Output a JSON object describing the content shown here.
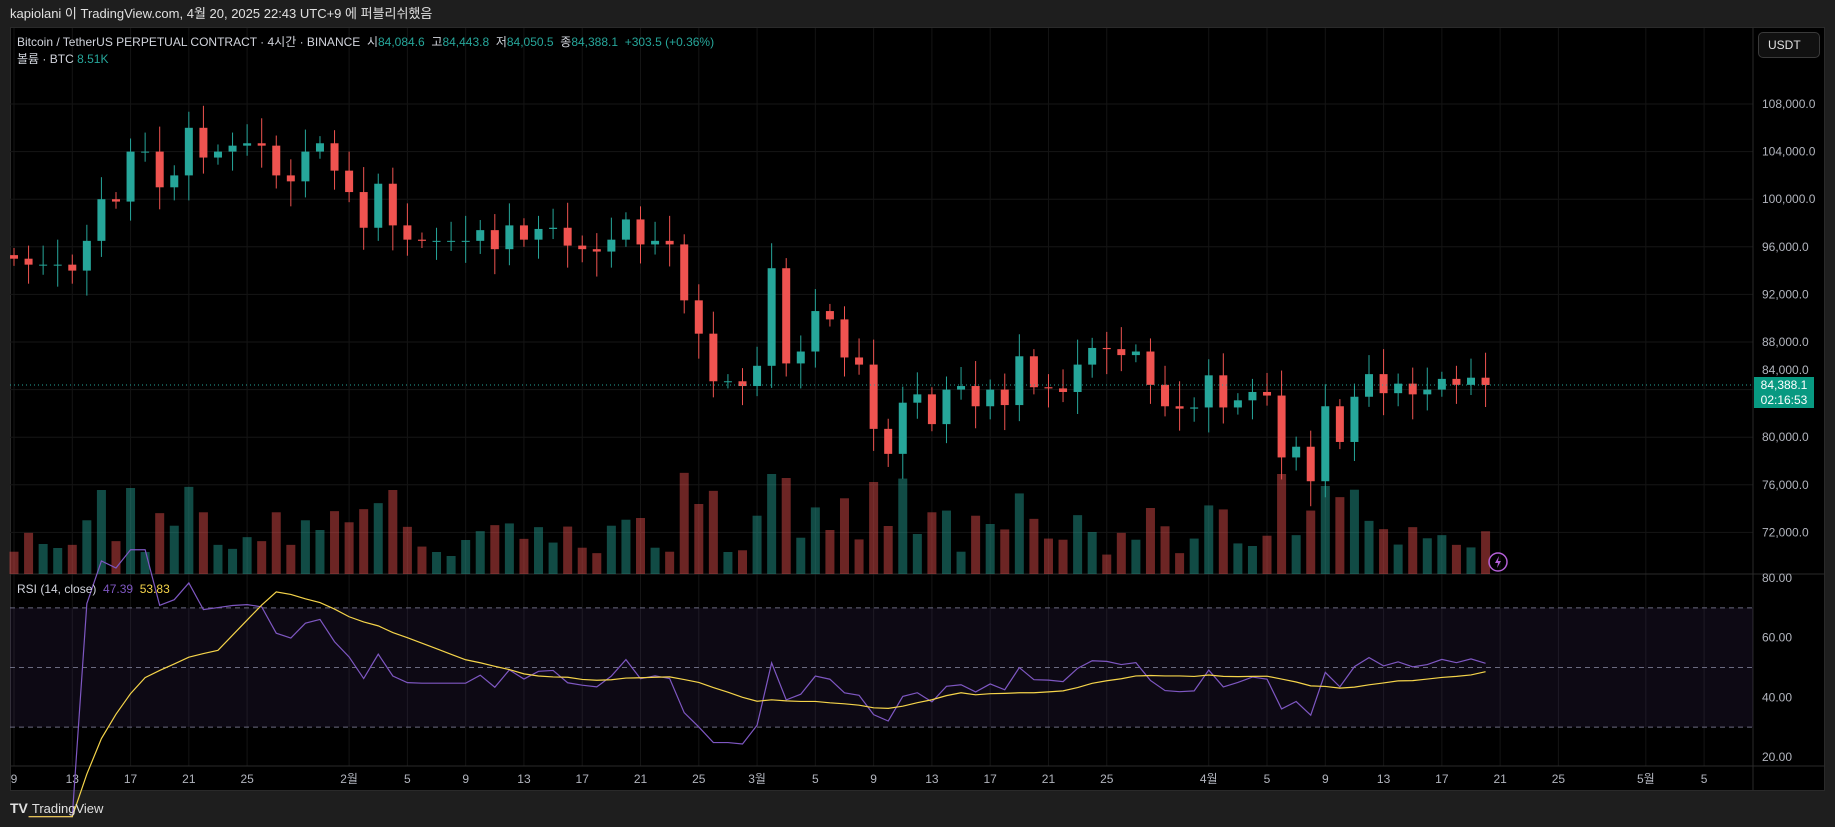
{
  "header": {
    "published": "kapiolani 이 TradingView.com, 4월 20, 2025 22:43 UTC+9 에 퍼블리쉬했음"
  },
  "legend": {
    "symbol": "Bitcoin / TetherUS PERPETUAL CONTRACT · 4시간 · BINANCE",
    "o_label": "시",
    "o": "84,084.6",
    "h_label": "고",
    "h": "84,443.8",
    "l_label": "저",
    "l": "84,050.5",
    "c_label": "종",
    "c": "84,388.1",
    "change": "+303.5 (+0.36%)",
    "volume_label": "볼륨 · BTC",
    "volume": "8.51K"
  },
  "rsi_legend": {
    "label": "RSI (14, close)",
    "rsi": "47.39",
    "ma": "53.83"
  },
  "price_axis": {
    "currency": "USDT",
    "current_price": "84,388.1",
    "countdown": "02:16:53"
  },
  "footer": {
    "brand": "TradingView"
  },
  "colors": {
    "up": "#26a69a",
    "down": "#ef5350",
    "rsi": "#7e57c2",
    "rsi_ma": "#f5d44a",
    "price_label": "#089981"
  },
  "icons": {
    "alert": "lightning-icon",
    "logo": "tradingview-logo"
  },
  "chart_data": {
    "type": "candlestick",
    "price_ticks": [
      108000,
      104000,
      100000,
      96000,
      92000,
      88000,
      84000,
      80000,
      76000,
      72000
    ],
    "price_tick_labels": [
      "108,000.0",
      "104,000.0",
      "100,000.0",
      "96,000.0",
      "92,000.0",
      "88,000.0",
      "84,000.0",
      "80,000.0",
      "76,000.0",
      "72,000.0"
    ],
    "rsi_ticks": [
      "80.00",
      "60.00",
      "40.00",
      "20.00"
    ],
    "rsi_levels": [
      70,
      50,
      30
    ],
    "x_tick_labels": [
      "9",
      "13",
      "17",
      "21",
      "25",
      "2월",
      "5",
      "9",
      "13",
      "17",
      "21",
      "25",
      "3월",
      "5",
      "9",
      "13",
      "17",
      "21",
      "25",
      "4월",
      "5",
      "9",
      "13",
      "17",
      "21",
      "25",
      "5월",
      "5"
    ],
    "closes": [
      95000,
      94500,
      94500,
      94500,
      94000,
      96500,
      100000,
      99800,
      104000,
      104000,
      101000,
      102000,
      106000,
      103500,
      104000,
      104500,
      104700,
      104500,
      102000,
      101500,
      104000,
      104700,
      102400,
      100600,
      97600,
      101300,
      97800,
      96600,
      96500,
      96500,
      96500,
      96500,
      97400,
      95800,
      97800,
      96600,
      97500,
      97600,
      96100,
      95800,
      95600,
      96600,
      98300,
      96200,
      96500,
      96200,
      91500,
      88700,
      84700,
      84700,
      84300,
      86000,
      94200,
      86200,
      87200,
      90600,
      89900,
      86700,
      86100,
      80700,
      78600,
      82900,
      83600,
      81100,
      84000,
      84300,
      82600,
      84000,
      82700,
      86800,
      84200,
      84100,
      83800,
      86100,
      87500,
      87400,
      86900,
      87200,
      84400,
      82600,
      82400,
      82500,
      85200,
      82500,
      83100,
      83800,
      83500,
      78300,
      79200,
      76300,
      82600,
      79600,
      83400,
      85300,
      83700,
      84500,
      83600,
      84000,
      84900,
      84400,
      85000,
      84388.1
    ]
  }
}
